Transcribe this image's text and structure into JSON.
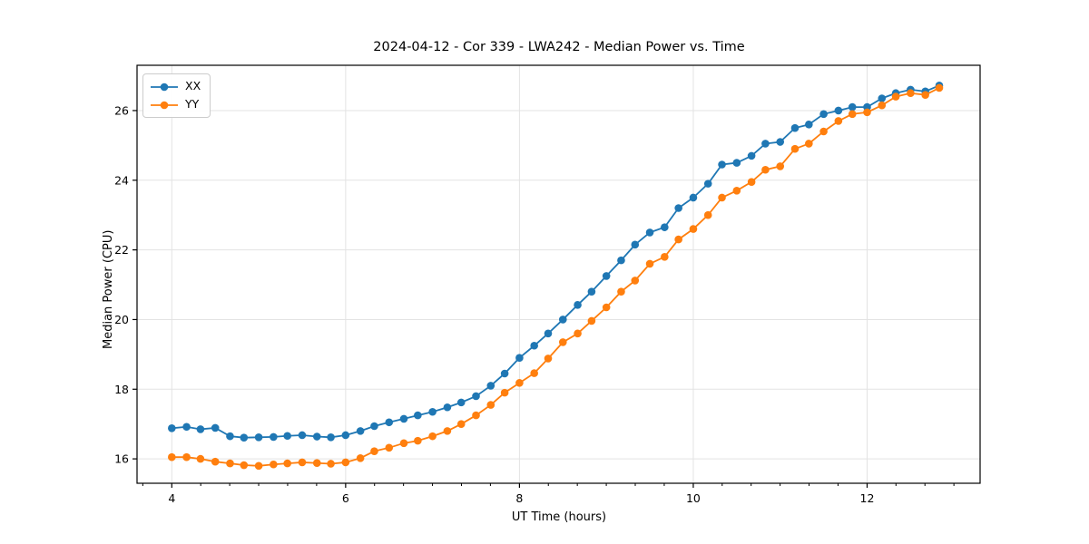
{
  "chart_data": {
    "type": "line",
    "title": "2024-04-12 - Cor 339 - LWA242 - Median Power vs. Time",
    "xlabel": "UT Time (hours)",
    "ylabel": "Median Power (CPU)",
    "xlim": [
      3.6,
      13.3
    ],
    "ylim": [
      15.3,
      27.3
    ],
    "xticks": [
      4,
      6,
      8,
      10,
      12
    ],
    "yticks": [
      16,
      18,
      20,
      22,
      24,
      26
    ],
    "minor_xtick_step": 0.3333,
    "grid": true,
    "grid_color": "#e3e3e3",
    "legend_position": "upper-left",
    "marker": "circle",
    "x": [
      4,
      4.17,
      4.33,
      4.5,
      4.67,
      4.83,
      5,
      5.17,
      5.33,
      5.5,
      5.67,
      5.83,
      6,
      6.17,
      6.33,
      6.5,
      6.67,
      6.83,
      7,
      7.17,
      7.33,
      7.5,
      7.67,
      7.83,
      8,
      8.17,
      8.33,
      8.5,
      8.67,
      8.83,
      9,
      9.17,
      9.33,
      9.5,
      9.67,
      9.83,
      10,
      10.17,
      10.33,
      10.5,
      10.67,
      10.83,
      11,
      11.17,
      11.33,
      11.5,
      11.67,
      11.83,
      12,
      12.17,
      12.33,
      12.5,
      12.67,
      12.83
    ],
    "series": [
      {
        "name": "XX",
        "color": "#1f77b4",
        "values": [
          16.88,
          16.92,
          16.85,
          16.89,
          16.65,
          16.61,
          16.62,
          16.63,
          16.66,
          16.68,
          16.64,
          16.62,
          16.68,
          16.8,
          16.94,
          17.05,
          17.15,
          17.25,
          17.35,
          17.48,
          17.62,
          17.8,
          18.1,
          18.45,
          18.9,
          19.25,
          19.6,
          20.0,
          20.42,
          20.8,
          21.25,
          21.7,
          22.15,
          22.5,
          22.65,
          23.2,
          23.5,
          23.9,
          24.45,
          24.5,
          24.7,
          25.05,
          25.1,
          25.5,
          25.6,
          25.9,
          26.0,
          26.1,
          26.1,
          26.35,
          26.5,
          26.6,
          26.55,
          26.72
        ]
      },
      {
        "name": "YY",
        "color": "#ff7f0e",
        "values": [
          16.05,
          16.05,
          16.0,
          15.92,
          15.87,
          15.82,
          15.8,
          15.84,
          15.87,
          15.9,
          15.88,
          15.86,
          15.9,
          16.02,
          16.22,
          16.32,
          16.45,
          16.52,
          16.65,
          16.8,
          17.0,
          17.25,
          17.55,
          17.9,
          18.18,
          18.46,
          18.88,
          19.35,
          19.6,
          19.96,
          20.35,
          20.8,
          21.12,
          21.6,
          21.8,
          22.3,
          22.6,
          23.0,
          23.5,
          23.7,
          23.95,
          24.3,
          24.4,
          24.9,
          25.05,
          25.4,
          25.7,
          25.9,
          25.95,
          26.15,
          26.4,
          26.5,
          26.45,
          26.65
        ]
      }
    ]
  }
}
